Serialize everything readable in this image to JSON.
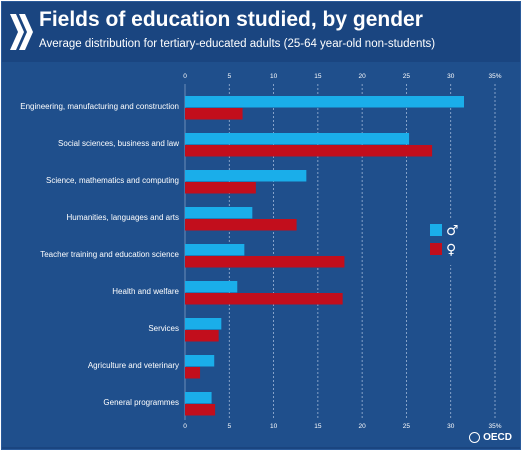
{
  "title": "Fields of education studied, by gender",
  "subtitle": "Average distribution for tertiary-educated adults (25-64 year-old non-students)",
  "brand": "OECD",
  "colors": {
    "background": "#1a4580",
    "plot_bg": "#1f4f8c",
    "male": "#1aaeea",
    "female": "#c20e1c",
    "text": "#ffffff"
  },
  "chart_data": {
    "type": "bar",
    "orientation": "horizontal",
    "categories": [
      "Engineering, manufacturing and construction",
      "Social sciences, business and law",
      "Science, mathematics and computing",
      "Humanities, languages and arts",
      "Teacher training and education science",
      "Health and welfare",
      "Services",
      "Agriculture and veterinary",
      "General programmes"
    ],
    "series": [
      {
        "name": "♂",
        "values": [
          31.5,
          25.3,
          13.7,
          7.6,
          6.7,
          5.9,
          4.1,
          3.3,
          3.0
        ]
      },
      {
        "name": "♀",
        "values": [
          6.5,
          27.9,
          8.0,
          12.6,
          18.0,
          17.8,
          3.8,
          1.7,
          3.4
        ]
      }
    ],
    "xlim": [
      0,
      35
    ],
    "xticks": [
      0,
      5,
      10,
      15,
      20,
      25,
      30,
      35
    ],
    "xtick_labels": [
      "0",
      "5",
      "10",
      "15",
      "20",
      "25",
      "30",
      "35"
    ],
    "xtick_suffix": "%",
    "grid": true,
    "legend_position": "right"
  }
}
